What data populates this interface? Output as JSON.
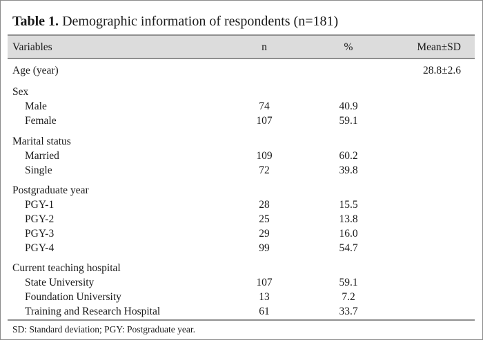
{
  "title": {
    "label": "Table 1.",
    "text": "Demographic information of respondents (n=181)"
  },
  "columns": [
    "Variables",
    "n",
    "%",
    "Mean±SD"
  ],
  "rows": [
    {
      "label": "Age (year)",
      "indent": false,
      "n": "",
      "pct": "",
      "mean": "28.8±2.6"
    },
    {
      "label": "Sex",
      "indent": false,
      "n": "",
      "pct": "",
      "mean": ""
    },
    {
      "label": "Male",
      "indent": true,
      "n": "74",
      "pct": "40.9",
      "mean": ""
    },
    {
      "label": "Female",
      "indent": true,
      "n": "107",
      "pct": "59.1",
      "mean": ""
    },
    {
      "label": "Marital status",
      "indent": false,
      "n": "",
      "pct": "",
      "mean": ""
    },
    {
      "label": "Married",
      "indent": true,
      "n": "109",
      "pct": "60.2",
      "mean": ""
    },
    {
      "label": "Single",
      "indent": true,
      "n": "72",
      "pct": "39.8",
      "mean": ""
    },
    {
      "label": "Postgraduate year",
      "indent": false,
      "n": "",
      "pct": "",
      "mean": ""
    },
    {
      "label": "PGY-1",
      "indent": true,
      "n": "28",
      "pct": "15.5",
      "mean": ""
    },
    {
      "label": "PGY-2",
      "indent": true,
      "n": "25",
      "pct": "13.8",
      "mean": ""
    },
    {
      "label": "PGY-3",
      "indent": true,
      "n": "29",
      "pct": "16.0",
      "mean": ""
    },
    {
      "label": "PGY-4",
      "indent": true,
      "n": "99",
      "pct": "54.7",
      "mean": ""
    },
    {
      "label": "Current teaching hospital",
      "indent": false,
      "n": "",
      "pct": "",
      "mean": ""
    },
    {
      "label": "State University",
      "indent": true,
      "n": "107",
      "pct": "59.1",
      "mean": ""
    },
    {
      "label": "Foundation University",
      "indent": true,
      "n": "13",
      "pct": "7.2",
      "mean": ""
    },
    {
      "label": "Training and Research Hospital",
      "indent": true,
      "n": "61",
      "pct": "33.7",
      "mean": ""
    }
  ],
  "footnote": "SD: Standard deviation; PGY: Postgraduate year."
}
